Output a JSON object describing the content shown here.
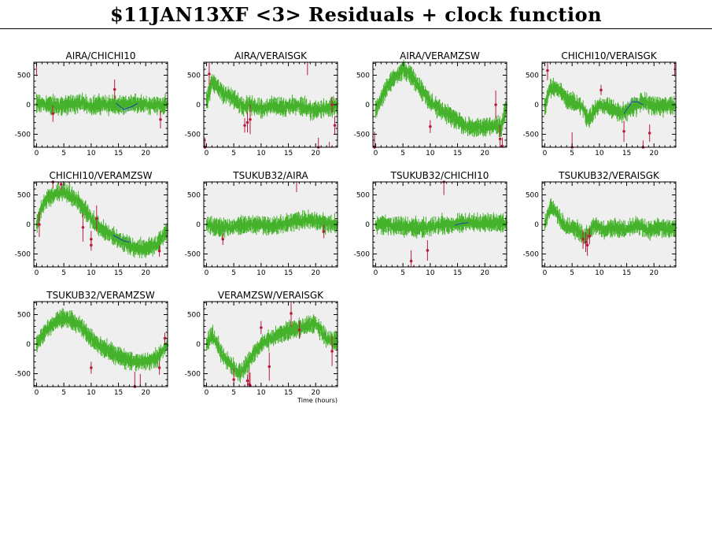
{
  "page": {
    "title": "$11JAN13XF <3> Residuals + clock function"
  },
  "colors": {
    "good": "#44b22a",
    "flagged": "#b81d3f",
    "clock": "#2244aa",
    "band": "#b8c4e2",
    "panel_bg": "#efefef"
  },
  "chart_data": [
    {
      "type": "scatter",
      "title": "AIRA/CHICHI10",
      "xlim": [
        -0.5,
        24
      ],
      "ylim": [
        -720,
        720
      ],
      "xticks": [
        0,
        5,
        10,
        15,
        20
      ],
      "yticks": [
        -500,
        0,
        500
      ],
      "xlabel": "",
      "series": [
        {
          "kind": "residuals",
          "x": [
            0,
            2,
            4,
            6,
            8,
            10,
            12,
            14,
            15.5,
            17,
            19,
            21,
            23,
            24
          ],
          "y": [
            20,
            0,
            -20,
            0,
            30,
            -20,
            10,
            0,
            -20,
            10,
            20,
            0,
            -10,
            0
          ],
          "noise": 60
        },
        {
          "kind": "clock",
          "x": [
            14.5,
            16,
            17.5,
            18.5
          ],
          "y": [
            30,
            -80,
            -30,
            20
          ],
          "band": 60
        },
        {
          "kind": "outliers",
          "x": [
            0,
            3,
            14.3,
            22.7
          ],
          "y": [
            730,
            -150,
            260,
            -250
          ]
        }
      ]
    },
    {
      "type": "scatter",
      "title": "AIRA/VERAISGK",
      "xlim": [
        -0.5,
        24
      ],
      "ylim": [
        -720,
        720
      ],
      "xticks": [
        0,
        5,
        10,
        15,
        20
      ],
      "yticks": [
        -500,
        0,
        500
      ],
      "xlabel": "",
      "series": [
        {
          "kind": "residuals",
          "x": [
            0,
            1,
            2,
            3,
            5,
            7,
            8,
            10,
            12,
            14,
            16,
            18,
            20,
            22,
            24
          ],
          "y": [
            50,
            400,
            300,
            200,
            100,
            -50,
            20,
            -80,
            -20,
            -50,
            0,
            -50,
            -100,
            -50,
            -20
          ],
          "noise": 65
        },
        {
          "kind": "clock",
          "x": [],
          "y": [],
          "band": 0
        },
        {
          "kind": "outliers",
          "x": [
            -0.3,
            0.5,
            7,
            7.5,
            8,
            18.5,
            20.5,
            22.5,
            23,
            23.5
          ],
          "y": [
            -720,
            520,
            -350,
            -300,
            -250,
            730,
            -720,
            -730,
            0,
            -350
          ]
        }
      ]
    },
    {
      "type": "scatter",
      "title": "AIRA/VERAMZSW",
      "xlim": [
        -0.5,
        24
      ],
      "ylim": [
        -720,
        720
      ],
      "xticks": [
        0,
        5,
        10,
        15,
        20
      ],
      "yticks": [
        -500,
        0,
        500
      ],
      "xlabel": "",
      "series": [
        {
          "kind": "residuals",
          "x": [
            0,
            2,
            4,
            5,
            6,
            8,
            10,
            12,
            14,
            16,
            18,
            20,
            22,
            23,
            24
          ],
          "y": [
            -100,
            300,
            520,
            580,
            550,
            300,
            50,
            -100,
            -200,
            -350,
            -400,
            -380,
            -350,
            -400,
            0
          ],
          "noise": 60
        },
        {
          "kind": "clock",
          "x": [],
          "y": [],
          "band": 0
        },
        {
          "kind": "outliers",
          "x": [
            -0.2,
            10,
            22,
            22.8,
            23.2
          ],
          "y": [
            -720,
            -370,
            0,
            -580,
            -700
          ]
        }
      ]
    },
    {
      "type": "scatter",
      "title": "CHICHI10/VERAISGK",
      "xlim": [
        -0.5,
        24
      ],
      "ylim": [
        -720,
        720
      ],
      "xticks": [
        0,
        5,
        10,
        15,
        20
      ],
      "yticks": [
        -500,
        0,
        500
      ],
      "xlabel": "",
      "series": [
        {
          "kind": "residuals",
          "x": [
            0,
            1,
            2,
            4,
            6,
            7,
            8,
            10,
            12,
            14,
            15,
            17,
            18,
            20,
            22,
            24
          ],
          "y": [
            -50,
            300,
            300,
            100,
            0,
            -50,
            -250,
            0,
            -50,
            -150,
            -100,
            0,
            50,
            -20,
            -20,
            -20
          ],
          "noise": 60
        },
        {
          "kind": "clock",
          "x": [
            14.5,
            16,
            17,
            18
          ],
          "y": [
            -150,
            50,
            50,
            0
          ],
          "band": 70
        },
        {
          "kind": "outliers",
          "x": [
            0.5,
            5,
            10.3,
            14.5,
            18,
            19.2,
            23.8
          ],
          "y": [
            580,
            -720,
            250,
            -450,
            -720,
            -480,
            730
          ]
        }
      ]
    },
    {
      "type": "scatter",
      "title": "CHICHI10/VERAMZSW",
      "xlim": [
        -0.5,
        24
      ],
      "ylim": [
        -720,
        720
      ],
      "xticks": [
        0,
        5,
        10,
        15,
        20
      ],
      "yticks": [
        -500,
        0,
        500
      ],
      "xlabel": "",
      "series": [
        {
          "kind": "residuals",
          "x": [
            0,
            1,
            2,
            4,
            5,
            6,
            8,
            10,
            12,
            14,
            16,
            18,
            20,
            22,
            24
          ],
          "y": [
            0,
            300,
            450,
            550,
            550,
            500,
            350,
            100,
            -100,
            -200,
            -300,
            -400,
            -400,
            -350,
            -100
          ],
          "noise": 60
        },
        {
          "kind": "clock",
          "x": [
            14,
            15,
            16,
            17
          ],
          "y": [
            -180,
            -230,
            -280,
            -300
          ],
          "band": 60
        },
        {
          "kind": "outliers",
          "x": [
            0.5,
            3,
            4.5,
            8.5,
            10,
            10,
            11,
            22.5
          ],
          "y": [
            0,
            720,
            680,
            -50,
            -250,
            -350,
            100,
            -450
          ]
        }
      ]
    },
    {
      "type": "scatter",
      "title": "TSUKUB32/AIRA",
      "xlim": [
        -0.5,
        24
      ],
      "ylim": [
        -720,
        720
      ],
      "xticks": [
        0,
        5,
        10,
        15,
        20
      ],
      "yticks": [
        -500,
        0,
        500
      ],
      "xlabel": "",
      "series": [
        {
          "kind": "residuals",
          "x": [
            0,
            2,
            4,
            6,
            8,
            10,
            12,
            14,
            16,
            18,
            20,
            22,
            24
          ],
          "y": [
            0,
            -50,
            -50,
            -30,
            0,
            0,
            -30,
            0,
            50,
            80,
            50,
            20,
            0
          ],
          "noise": 55
        },
        {
          "kind": "clock",
          "x": [],
          "y": [],
          "band": 0
        },
        {
          "kind": "outliers",
          "x": [
            3,
            16.5,
            21.5
          ],
          "y": [
            -250,
            730,
            -120
          ]
        }
      ]
    },
    {
      "type": "scatter",
      "title": "TSUKUB32/CHICHI10",
      "xlim": [
        -0.5,
        24
      ],
      "ylim": [
        -720,
        720
      ],
      "xticks": [
        0,
        5,
        10,
        15,
        20
      ],
      "yticks": [
        -500,
        0,
        500
      ],
      "xlabel": "",
      "series": [
        {
          "kind": "residuals",
          "x": [
            0,
            2,
            4,
            6,
            8,
            10,
            12,
            14,
            16,
            18,
            20,
            22,
            24
          ],
          "y": [
            0,
            0,
            -30,
            -50,
            -60,
            -40,
            0,
            -10,
            20,
            30,
            30,
            20,
            20
          ],
          "noise": 55
        },
        {
          "kind": "clock",
          "x": [
            14.5,
            16,
            17
          ],
          "y": [
            -10,
            20,
            30
          ],
          "band": 55
        },
        {
          "kind": "outliers",
          "x": [
            6.5,
            9.5,
            12.5
          ],
          "y": [
            -620,
            -440,
            720
          ]
        }
      ]
    },
    {
      "type": "scatter",
      "title": "TSUKUB32/VERAISGK",
      "xlim": [
        -0.5,
        24
      ],
      "ylim": [
        -720,
        720
      ],
      "xticks": [
        0,
        5,
        10,
        15,
        20
      ],
      "yticks": [
        -500,
        0,
        500
      ],
      "xlabel": "",
      "series": [
        {
          "kind": "residuals",
          "x": [
            0,
            1,
            2,
            3,
            4,
            5,
            6,
            7,
            8,
            9,
            11,
            13,
            15,
            17,
            19,
            21,
            23,
            24
          ],
          "y": [
            0,
            300,
            250,
            50,
            -50,
            -50,
            -100,
            -200,
            -150,
            0,
            -100,
            -50,
            -100,
            0,
            -100,
            -50,
            -80,
            -50
          ],
          "noise": 55
        },
        {
          "kind": "clock",
          "x": [],
          "y": [],
          "band": 0
        },
        {
          "kind": "outliers",
          "x": [
            7,
            7.5,
            7.8,
            8.2
          ],
          "y": [
            -250,
            -300,
            -350,
            -200
          ]
        }
      ]
    },
    {
      "type": "scatter",
      "title": "TSUKUB32/VERAMZSW",
      "xlim": [
        -0.5,
        24
      ],
      "ylim": [
        -720,
        720
      ],
      "xticks": [
        0,
        5,
        10,
        15,
        20
      ],
      "yticks": [
        -500,
        0,
        500
      ],
      "xlabel": "",
      "series": [
        {
          "kind": "residuals",
          "x": [
            0,
            2,
            4,
            5,
            6,
            8,
            10,
            12,
            14,
            16,
            18,
            20,
            22,
            24
          ],
          "y": [
            0,
            250,
            420,
            430,
            420,
            300,
            100,
            -50,
            -150,
            -250,
            -300,
            -300,
            -250,
            0
          ],
          "noise": 50
        },
        {
          "kind": "clock",
          "x": [],
          "y": [],
          "band": 0
        },
        {
          "kind": "outliers",
          "x": [
            10,
            18,
            19,
            22.5,
            23.5
          ],
          "y": [
            -400,
            -720,
            -730,
            -400,
            100
          ]
        }
      ]
    },
    {
      "type": "scatter",
      "title": "VERAMZSW/VERAISGK",
      "xlim": [
        -0.5,
        24
      ],
      "ylim": [
        -720,
        720
      ],
      "xticks": [
        0,
        5,
        10,
        15,
        20
      ],
      "yticks": [
        -500,
        0,
        500
      ],
      "xlabel": "Time (hours)",
      "series": [
        {
          "kind": "residuals",
          "x": [
            0,
            1,
            2,
            3,
            4,
            5,
            6,
            7,
            8,
            10,
            12,
            14,
            16,
            18,
            20,
            22,
            24
          ],
          "y": [
            0,
            150,
            0,
            -200,
            -300,
            -400,
            -500,
            -400,
            -250,
            0,
            100,
            200,
            250,
            300,
            350,
            100,
            50
          ],
          "noise": 65
        },
        {
          "kind": "clock",
          "x": [],
          "y": [],
          "band": 0
        },
        {
          "kind": "outliers",
          "x": [
            5,
            7.5,
            7.8,
            8,
            10,
            11.5,
            15.5,
            17,
            23
          ],
          "y": [
            -600,
            -620,
            -680,
            -700,
            280,
            -380,
            520,
            240,
            -120
          ]
        }
      ]
    }
  ]
}
